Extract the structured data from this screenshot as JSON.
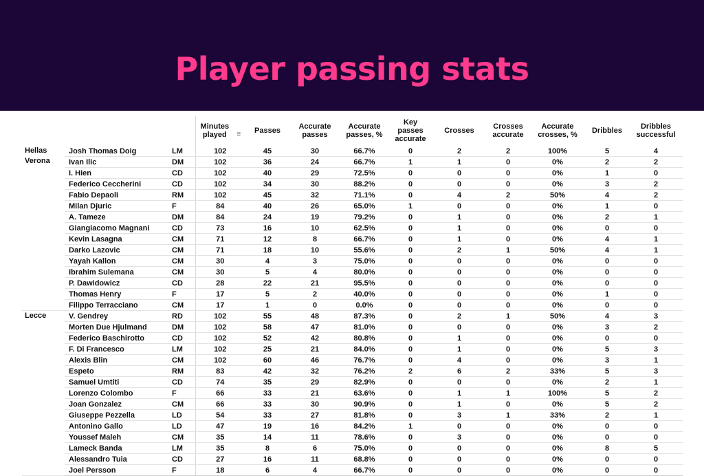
{
  "title": "Player passing stats",
  "columns": {
    "minutes": "Minutes played",
    "passes": "Passes",
    "accurate_passes": "Accurate passes",
    "accurate_passes_pct": "Accurate passes, %",
    "key_passes_accurate": "Key passes accurate",
    "crosses": "Crosses",
    "crosses_accurate": "Crosses accurate",
    "accurate_crosses_pct": "Accurate crosses, %",
    "dribbles": "Dribbles",
    "dribbles_successful": "Dribbles successful"
  },
  "teams": [
    {
      "name": "Hellas Verona",
      "players": [
        {
          "name": "Josh Thomas Doig",
          "pos": "LM",
          "min": "102",
          "passes": "45",
          "acc": "30",
          "acc_pct": "66.7%",
          "key": "0",
          "crosses": "2",
          "cross_acc": "2",
          "cross_pct": "100%",
          "drib": "5",
          "drib_succ": "4"
        },
        {
          "name": "Ivan Ilic",
          "pos": "DM",
          "min": "102",
          "passes": "36",
          "acc": "24",
          "acc_pct": "66.7%",
          "key": "1",
          "crosses": "1",
          "cross_acc": "0",
          "cross_pct": "0%",
          "drib": "2",
          "drib_succ": "2"
        },
        {
          "name": "I. Hien",
          "pos": "CD",
          "min": "102",
          "passes": "40",
          "acc": "29",
          "acc_pct": "72.5%",
          "key": "0",
          "crosses": "0",
          "cross_acc": "0",
          "cross_pct": "0%",
          "drib": "1",
          "drib_succ": "0"
        },
        {
          "name": "Federico Ceccherini",
          "pos": "CD",
          "min": "102",
          "passes": "34",
          "acc": "30",
          "acc_pct": "88.2%",
          "key": "0",
          "crosses": "0",
          "cross_acc": "0",
          "cross_pct": "0%",
          "drib": "3",
          "drib_succ": "2"
        },
        {
          "name": "Fabio Depaoli",
          "pos": "RM",
          "min": "102",
          "passes": "45",
          "acc": "32",
          "acc_pct": "71.1%",
          "key": "0",
          "crosses": "4",
          "cross_acc": "2",
          "cross_pct": "50%",
          "drib": "4",
          "drib_succ": "2"
        },
        {
          "name": "Milan Djuric",
          "pos": "F",
          "min": "84",
          "passes": "40",
          "acc": "26",
          "acc_pct": "65.0%",
          "key": "1",
          "crosses": "0",
          "cross_acc": "0",
          "cross_pct": "0%",
          "drib": "1",
          "drib_succ": "0"
        },
        {
          "name": "A. Tameze",
          "pos": "DM",
          "min": "84",
          "passes": "24",
          "acc": "19",
          "acc_pct": "79.2%",
          "key": "0",
          "crosses": "1",
          "cross_acc": "0",
          "cross_pct": "0%",
          "drib": "2",
          "drib_succ": "1"
        },
        {
          "name": "Giangiacomo Magnani",
          "pos": "CD",
          "min": "73",
          "passes": "16",
          "acc": "10",
          "acc_pct": "62.5%",
          "key": "0",
          "crosses": "1",
          "cross_acc": "0",
          "cross_pct": "0%",
          "drib": "0",
          "drib_succ": "0"
        },
        {
          "name": "Kevin Lasagna",
          "pos": "CM",
          "min": "71",
          "passes": "12",
          "acc": "8",
          "acc_pct": "66.7%",
          "key": "0",
          "crosses": "1",
          "cross_acc": "0",
          "cross_pct": "0%",
          "drib": "4",
          "drib_succ": "1"
        },
        {
          "name": "Darko Lazovic",
          "pos": "CM",
          "min": "71",
          "passes": "18",
          "acc": "10",
          "acc_pct": "55.6%",
          "key": "0",
          "crosses": "2",
          "cross_acc": "1",
          "cross_pct": "50%",
          "drib": "4",
          "drib_succ": "1"
        },
        {
          "name": "Yayah Kallon",
          "pos": "CM",
          "min": "30",
          "passes": "4",
          "acc": "3",
          "acc_pct": "75.0%",
          "key": "0",
          "crosses": "0",
          "cross_acc": "0",
          "cross_pct": "0%",
          "drib": "0",
          "drib_succ": "0"
        },
        {
          "name": "Ibrahim Sulemana",
          "pos": "CM",
          "min": "30",
          "passes": "5",
          "acc": "4",
          "acc_pct": "80.0%",
          "key": "0",
          "crosses": "0",
          "cross_acc": "0",
          "cross_pct": "0%",
          "drib": "0",
          "drib_succ": "0"
        },
        {
          "name": "P. Dawidowicz",
          "pos": "CD",
          "min": "28",
          "passes": "22",
          "acc": "21",
          "acc_pct": "95.5%",
          "key": "0",
          "crosses": "0",
          "cross_acc": "0",
          "cross_pct": "0%",
          "drib": "0",
          "drib_succ": "0"
        },
        {
          "name": "Thomas Henry",
          "pos": "F",
          "min": "17",
          "passes": "5",
          "acc": "2",
          "acc_pct": "40.0%",
          "key": "0",
          "crosses": "0",
          "cross_acc": "0",
          "cross_pct": "0%",
          "drib": "1",
          "drib_succ": "0"
        },
        {
          "name": "Filippo Terracciano",
          "pos": "CM",
          "min": "17",
          "passes": "1",
          "acc": "0",
          "acc_pct": "0.0%",
          "key": "0",
          "crosses": "0",
          "cross_acc": "0",
          "cross_pct": "0%",
          "drib": "0",
          "drib_succ": "0"
        }
      ]
    },
    {
      "name": "Lecce",
      "players": [
        {
          "name": "V. Gendrey",
          "pos": "RD",
          "min": "102",
          "passes": "55",
          "acc": "48",
          "acc_pct": "87.3%",
          "key": "0",
          "crosses": "2",
          "cross_acc": "1",
          "cross_pct": "50%",
          "drib": "4",
          "drib_succ": "3"
        },
        {
          "name": "Morten Due Hjulmand",
          "pos": "DM",
          "min": "102",
          "passes": "58",
          "acc": "47",
          "acc_pct": "81.0%",
          "key": "0",
          "crosses": "0",
          "cross_acc": "0",
          "cross_pct": "0%",
          "drib": "3",
          "drib_succ": "2"
        },
        {
          "name": "Federico Baschirotto",
          "pos": "CD",
          "min": "102",
          "passes": "52",
          "acc": "42",
          "acc_pct": "80.8%",
          "key": "0",
          "crosses": "1",
          "cross_acc": "0",
          "cross_pct": "0%",
          "drib": "0",
          "drib_succ": "0"
        },
        {
          "name": "F. Di Francesco",
          "pos": "LM",
          "min": "102",
          "passes": "25",
          "acc": "21",
          "acc_pct": "84.0%",
          "key": "0",
          "crosses": "1",
          "cross_acc": "0",
          "cross_pct": "0%",
          "drib": "5",
          "drib_succ": "3"
        },
        {
          "name": "Alexis Blin",
          "pos": "CM",
          "min": "102",
          "passes": "60",
          "acc": "46",
          "acc_pct": "76.7%",
          "key": "0",
          "crosses": "4",
          "cross_acc": "0",
          "cross_pct": "0%",
          "drib": "3",
          "drib_succ": "1"
        },
        {
          "name": "Espeto",
          "pos": "RM",
          "min": "83",
          "passes": "42",
          "acc": "32",
          "acc_pct": "76.2%",
          "key": "2",
          "crosses": "6",
          "cross_acc": "2",
          "cross_pct": "33%",
          "drib": "5",
          "drib_succ": "3"
        },
        {
          "name": "Samuel Umtiti",
          "pos": "CD",
          "min": "74",
          "passes": "35",
          "acc": "29",
          "acc_pct": "82.9%",
          "key": "0",
          "crosses": "0",
          "cross_acc": "0",
          "cross_pct": "0%",
          "drib": "2",
          "drib_succ": "1"
        },
        {
          "name": "Lorenzo Colombo",
          "pos": "F",
          "min": "66",
          "passes": "33",
          "acc": "21",
          "acc_pct": "63.6%",
          "key": "0",
          "crosses": "1",
          "cross_acc": "1",
          "cross_pct": "100%",
          "drib": "5",
          "drib_succ": "2"
        },
        {
          "name": "Joan Gonzalez",
          "pos": "CM",
          "min": "66",
          "passes": "33",
          "acc": "30",
          "acc_pct": "90.9%",
          "key": "0",
          "crosses": "1",
          "cross_acc": "0",
          "cross_pct": "0%",
          "drib": "5",
          "drib_succ": "2"
        },
        {
          "name": "Giuseppe Pezzella",
          "pos": "LD",
          "min": "54",
          "passes": "33",
          "acc": "27",
          "acc_pct": "81.8%",
          "key": "0",
          "crosses": "3",
          "cross_acc": "1",
          "cross_pct": "33%",
          "drib": "2",
          "drib_succ": "1"
        },
        {
          "name": "Antonino Gallo",
          "pos": "LD",
          "min": "47",
          "passes": "19",
          "acc": "16",
          "acc_pct": "84.2%",
          "key": "1",
          "crosses": "0",
          "cross_acc": "0",
          "cross_pct": "0%",
          "drib": "0",
          "drib_succ": "0"
        },
        {
          "name": "Youssef Maleh",
          "pos": "CM",
          "min": "35",
          "passes": "14",
          "acc": "11",
          "acc_pct": "78.6%",
          "key": "0",
          "crosses": "3",
          "cross_acc": "0",
          "cross_pct": "0%",
          "drib": "0",
          "drib_succ": "0"
        },
        {
          "name": "Lameck Banda",
          "pos": "LM",
          "min": "35",
          "passes": "8",
          "acc": "6",
          "acc_pct": "75.0%",
          "key": "0",
          "crosses": "0",
          "cross_acc": "0",
          "cross_pct": "0%",
          "drib": "8",
          "drib_succ": "5"
        },
        {
          "name": "Alessandro Tuia",
          "pos": "CD",
          "min": "27",
          "passes": "16",
          "acc": "11",
          "acc_pct": "68.8%",
          "key": "0",
          "crosses": "0",
          "cross_acc": "0",
          "cross_pct": "0%",
          "drib": "0",
          "drib_succ": "0"
        },
        {
          "name": "Joel Persson",
          "pos": "F",
          "min": "18",
          "passes": "6",
          "acc": "4",
          "acc_pct": "66.7%",
          "key": "0",
          "crosses": "0",
          "cross_acc": "0",
          "cross_pct": "0%",
          "drib": "0",
          "drib_succ": "0"
        }
      ]
    }
  ]
}
